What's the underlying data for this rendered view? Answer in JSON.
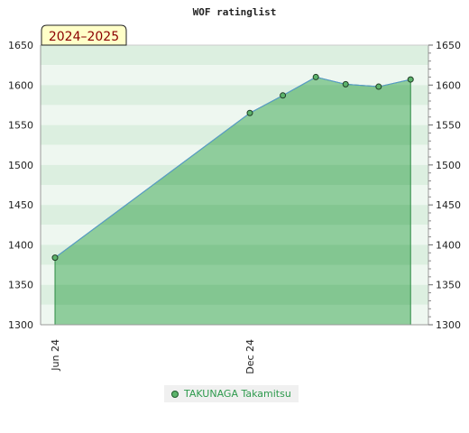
{
  "chart_data": {
    "type": "area",
    "title": "WOF ratinglist",
    "badge": "2024–2025",
    "x": [
      "2024-06-15",
      "2024-12-15",
      "2025-01-15",
      "2025-02-15",
      "2025-03-15",
      "2025-04-15",
      "2025-05-15"
    ],
    "x_ticks": [
      "Jun 24",
      "Dec 24"
    ],
    "series": [
      {
        "name": "TAKUNAGA Takamitsu",
        "values": [
          1384,
          1565,
          1587,
          1610,
          1601,
          1598,
          1607
        ]
      }
    ],
    "ylim": [
      1300,
      1650
    ],
    "y_ticks": [
      1300,
      1350,
      1400,
      1450,
      1500,
      1550,
      1600,
      1650
    ],
    "legend_position": "bottom",
    "grid": true,
    "colors": {
      "fill": "#6fbf80",
      "line": "#5a9bd4",
      "point": "#5cb36b",
      "legend_text": "#2e9a4d",
      "badge_bg": "#ffffc8"
    }
  }
}
